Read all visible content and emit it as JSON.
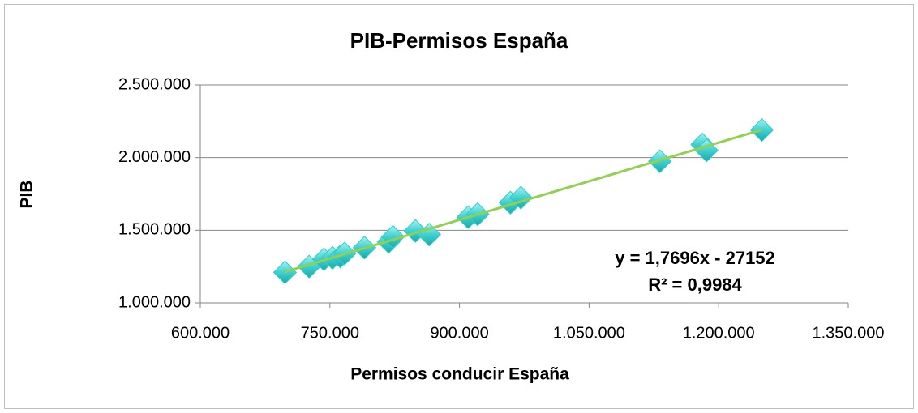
{
  "chart_data": {
    "type": "scatter",
    "title": "PIB-Permisos España",
    "xlabel": "Permisos conducir España",
    "ylabel": "PIB",
    "xlim": [
      600000,
      1350000
    ],
    "xticks": [
      {
        "value": 600000,
        "label": "600.000"
      },
      {
        "value": 750000,
        "label": "750.000"
      },
      {
        "value": 900000,
        "label": "900.000"
      },
      {
        "value": 1050000,
        "label": "1.050.000"
      },
      {
        "value": 1200000,
        "label": "1.200.000"
      },
      {
        "value": 1350000,
        "label": "1.350.000"
      }
    ],
    "ylim": [
      1000000,
      2500000
    ],
    "yticks": [
      {
        "value": 1000000,
        "label": "1.000.000"
      },
      {
        "value": 1500000,
        "label": "1.500.000"
      },
      {
        "value": 2000000,
        "label": "2.000.000"
      },
      {
        "value": 2500000,
        "label": "2.500.000"
      }
    ],
    "grid": true,
    "series": [
      {
        "color": "#33cccc",
        "x": [
          698000,
          726000,
          743000,
          753000,
          762000,
          767000,
          790000,
          818000,
          823000,
          849000,
          865000,
          910000,
          921000,
          959000,
          971000,
          1132000,
          1181000,
          1186000,
          1250000
        ],
        "values": [
          1210000,
          1250000,
          1300000,
          1310000,
          1320000,
          1340000,
          1380000,
          1420000,
          1455000,
          1495000,
          1470000,
          1590000,
          1610000,
          1690000,
          1724000,
          1975000,
          2090000,
          2050000,
          2190000
        ]
      }
    ],
    "trendline": {
      "equation": "y = 1,7696x - 27152",
      "r2": "R² = 0,9984",
      "color": "#92d050"
    }
  }
}
